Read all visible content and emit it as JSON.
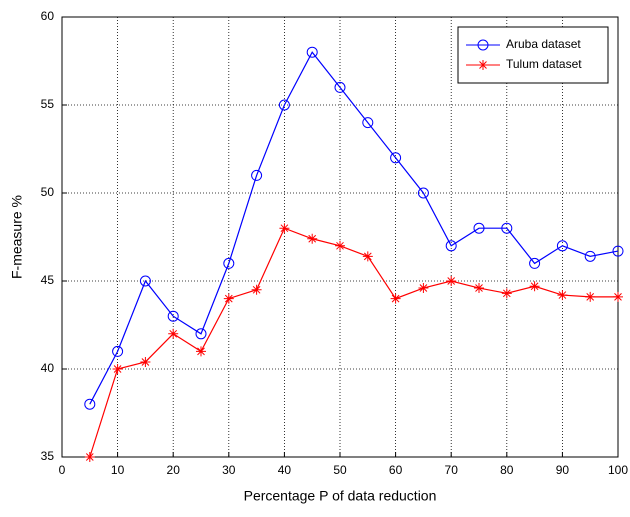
{
  "chart_data": {
    "type": "line",
    "x_label": "Percentage P of data reduction",
    "y_label": "F-measure %",
    "x": [
      5,
      10,
      15,
      20,
      25,
      30,
      35,
      40,
      45,
      50,
      55,
      60,
      65,
      70,
      75,
      80,
      85,
      90,
      95,
      100
    ],
    "series": [
      {
        "name": "Aruba dataset",
        "color": "#0000ff",
        "marker": "circle",
        "values": [
          38,
          41,
          45,
          43,
          42,
          46,
          51,
          55,
          58,
          56,
          54,
          52,
          50,
          47,
          48,
          48,
          46,
          47,
          46.4,
          46.7
        ]
      },
      {
        "name": "Tulum dataset",
        "color": "#ff0000",
        "marker": "star",
        "values": [
          35,
          40,
          40.4,
          42,
          41,
          44,
          44.5,
          48,
          47.4,
          47,
          46.4,
          44,
          44.6,
          45,
          44.6,
          44.3,
          44.7,
          44.2,
          44.1,
          44.1
        ]
      }
    ],
    "xlim": [
      0,
      100
    ],
    "xticks": [
      0,
      10,
      20,
      30,
      40,
      50,
      60,
      70,
      80,
      90,
      100
    ],
    "ylim": [
      35,
      60
    ],
    "yticks": [
      35,
      40,
      45,
      50,
      55,
      60
    ],
    "grid": true,
    "legend_position": "upper-right"
  }
}
